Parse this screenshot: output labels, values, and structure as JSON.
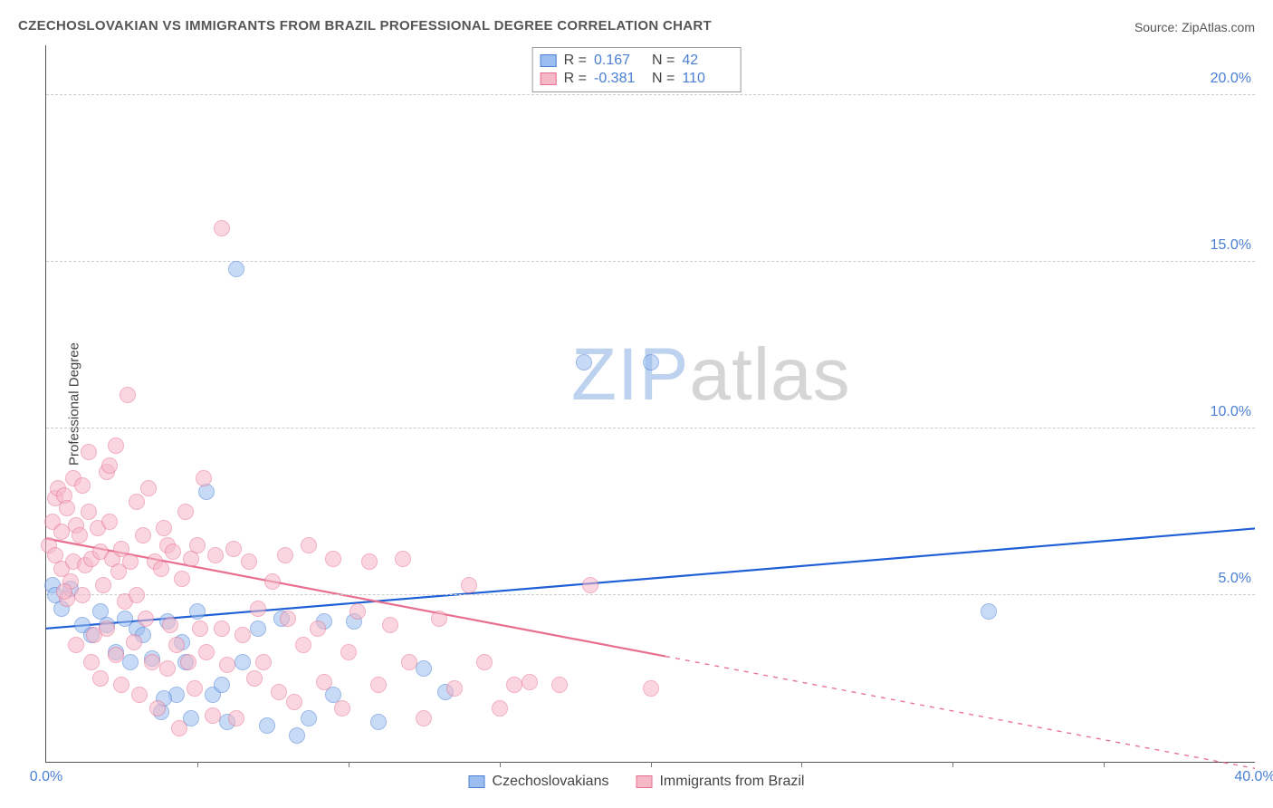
{
  "title": "CZECHOSLOVAKIAN VS IMMIGRANTS FROM BRAZIL PROFESSIONAL DEGREE CORRELATION CHART",
  "source_label": "Source: ",
  "source_name": "ZipAtlas.com",
  "ylabel": "Professional Degree",
  "watermark_a": "ZIP",
  "watermark_b": "atlas",
  "chart": {
    "type": "scatter",
    "xlim": [
      0,
      40
    ],
    "ylim": [
      0,
      21.5
    ],
    "xticks": [
      0,
      40
    ],
    "xtick_marks": [
      5,
      10,
      15,
      20,
      25,
      30,
      35
    ],
    "yticks": [
      5,
      10,
      15,
      20
    ],
    "xtick_fmt": "%",
    "ytick_fmt": "%",
    "background_color": "#ffffff",
    "grid_color": "#cccccc",
    "axis_color": "#555555",
    "tick_color": "#4a7fd4",
    "label_fontsize": 15,
    "tick_fontsize": 16,
    "marker_radius": 9,
    "marker_opacity": 0.55,
    "series": [
      {
        "name": "Czechoslovakians",
        "color_fill": "#9bbdf0",
        "color_stroke": "#4a7fd4",
        "R": "0.167",
        "N": "42",
        "trend": {
          "x1": 0,
          "y1": 4.0,
          "x2": 40,
          "y2": 7.0,
          "color": "#1f5fd6",
          "width": 2.2
        },
        "points": [
          [
            0.2,
            5.3
          ],
          [
            0.3,
            5.0
          ],
          [
            0.5,
            4.6
          ],
          [
            0.8,
            5.2
          ],
          [
            1.2,
            4.1
          ],
          [
            1.5,
            3.8
          ],
          [
            1.8,
            4.5
          ],
          [
            2.0,
            4.1
          ],
          [
            2.3,
            3.3
          ],
          [
            2.6,
            4.3
          ],
          [
            2.8,
            3.0
          ],
          [
            3.0,
            4.0
          ],
          [
            3.2,
            3.8
          ],
          [
            3.5,
            3.1
          ],
          [
            3.8,
            1.5
          ],
          [
            4.0,
            4.2
          ],
          [
            4.3,
            2.0
          ],
          [
            4.5,
            3.6
          ],
          [
            4.8,
            1.3
          ],
          [
            5.0,
            4.5
          ],
          [
            5.3,
            8.1
          ],
          [
            5.5,
            2.0
          ],
          [
            6.0,
            1.2
          ],
          [
            6.3,
            14.8
          ],
          [
            6.5,
            3.0
          ],
          [
            7.0,
            4.0
          ],
          [
            7.3,
            1.1
          ],
          [
            7.8,
            4.3
          ],
          [
            8.3,
            0.8
          ],
          [
            8.7,
            1.3
          ],
          [
            9.2,
            4.2
          ],
          [
            9.5,
            2.0
          ],
          [
            10.2,
            4.2
          ],
          [
            11.0,
            1.2
          ],
          [
            12.5,
            2.8
          ],
          [
            13.2,
            2.1
          ],
          [
            17.8,
            12.0
          ],
          [
            20.0,
            12.0
          ],
          [
            31.2,
            4.5
          ],
          [
            3.9,
            1.9
          ],
          [
            4.6,
            3.0
          ],
          [
            5.8,
            2.3
          ]
        ]
      },
      {
        "name": "Immigrants from Brazil",
        "color_fill": "#f6b8c7",
        "color_stroke": "#e86f8f",
        "R": "-0.381",
        "N": "110",
        "trend": {
          "x1": 0,
          "y1": 6.7,
          "x2": 40,
          "y2": -0.2,
          "color": "#e86f8f",
          "width": 2.2,
          "dash_after_x": 20.5
        },
        "points": [
          [
            0.1,
            6.5
          ],
          [
            0.2,
            7.2
          ],
          [
            0.3,
            7.9
          ],
          [
            0.3,
            6.2
          ],
          [
            0.4,
            8.2
          ],
          [
            0.5,
            5.8
          ],
          [
            0.5,
            6.9
          ],
          [
            0.6,
            8.0
          ],
          [
            0.7,
            7.6
          ],
          [
            0.7,
            4.9
          ],
          [
            0.8,
            5.4
          ],
          [
            0.9,
            8.5
          ],
          [
            0.9,
            6.0
          ],
          [
            1.0,
            7.1
          ],
          [
            1.0,
            3.5
          ],
          [
            1.1,
            6.8
          ],
          [
            1.2,
            5.0
          ],
          [
            1.2,
            8.3
          ],
          [
            1.3,
            5.9
          ],
          [
            1.4,
            7.5
          ],
          [
            1.5,
            6.1
          ],
          [
            1.5,
            3.0
          ],
          [
            1.6,
            3.8
          ],
          [
            1.7,
            7.0
          ],
          [
            1.8,
            6.3
          ],
          [
            1.8,
            2.5
          ],
          [
            1.9,
            5.3
          ],
          [
            2.0,
            8.7
          ],
          [
            2.0,
            4.0
          ],
          [
            2.1,
            7.2
          ],
          [
            2.2,
            6.1
          ],
          [
            2.3,
            9.5
          ],
          [
            2.3,
            3.2
          ],
          [
            2.4,
            5.7
          ],
          [
            2.5,
            6.4
          ],
          [
            2.5,
            2.3
          ],
          [
            2.6,
            4.8
          ],
          [
            2.7,
            11.0
          ],
          [
            2.8,
            6.0
          ],
          [
            2.9,
            3.6
          ],
          [
            3.0,
            7.8
          ],
          [
            3.0,
            5.0
          ],
          [
            3.1,
            2.0
          ],
          [
            3.2,
            6.8
          ],
          [
            3.3,
            4.3
          ],
          [
            3.4,
            8.2
          ],
          [
            3.5,
            3.0
          ],
          [
            3.6,
            6.0
          ],
          [
            3.7,
            1.6
          ],
          [
            3.8,
            5.8
          ],
          [
            3.9,
            7.0
          ],
          [
            4.0,
            6.5
          ],
          [
            4.0,
            2.8
          ],
          [
            4.1,
            4.1
          ],
          [
            4.2,
            6.3
          ],
          [
            4.3,
            3.5
          ],
          [
            4.4,
            1.0
          ],
          [
            4.5,
            5.5
          ],
          [
            4.6,
            7.5
          ],
          [
            4.7,
            3.0
          ],
          [
            4.8,
            6.1
          ],
          [
            4.9,
            2.2
          ],
          [
            5.0,
            6.5
          ],
          [
            5.1,
            4.0
          ],
          [
            5.2,
            8.5
          ],
          [
            5.3,
            3.3
          ],
          [
            5.5,
            1.4
          ],
          [
            5.6,
            6.2
          ],
          [
            5.8,
            16.0
          ],
          [
            5.8,
            4.0
          ],
          [
            6.0,
            2.9
          ],
          [
            6.2,
            6.4
          ],
          [
            6.3,
            1.3
          ],
          [
            6.5,
            3.8
          ],
          [
            6.7,
            6.0
          ],
          [
            6.9,
            2.5
          ],
          [
            7.0,
            4.6
          ],
          [
            7.2,
            3.0
          ],
          [
            7.5,
            5.4
          ],
          [
            7.7,
            2.1
          ],
          [
            7.9,
            6.2
          ],
          [
            8.0,
            4.3
          ],
          [
            8.2,
            1.8
          ],
          [
            8.5,
            3.5
          ],
          [
            8.7,
            6.5
          ],
          [
            9.0,
            4.0
          ],
          [
            9.2,
            2.4
          ],
          [
            9.5,
            6.1
          ],
          [
            9.8,
            1.6
          ],
          [
            10.0,
            3.3
          ],
          [
            10.3,
            4.5
          ],
          [
            10.7,
            6.0
          ],
          [
            11.0,
            2.3
          ],
          [
            11.4,
            4.1
          ],
          [
            11.8,
            6.1
          ],
          [
            12.0,
            3.0
          ],
          [
            12.5,
            1.3
          ],
          [
            13.0,
            4.3
          ],
          [
            13.5,
            2.2
          ],
          [
            14.0,
            5.3
          ],
          [
            14.5,
            3.0
          ],
          [
            15.0,
            1.6
          ],
          [
            15.5,
            2.3
          ],
          [
            16.0,
            2.4
          ],
          [
            17.0,
            2.3
          ],
          [
            18.0,
            5.3
          ],
          [
            20.0,
            2.2
          ],
          [
            1.4,
            9.3
          ],
          [
            2.1,
            8.9
          ],
          [
            0.6,
            5.1
          ]
        ]
      }
    ]
  },
  "stats_labels": {
    "R": "R =",
    "N": "N ="
  },
  "legend_label_a": "Czechoslovakians",
  "legend_label_b": "Immigrants from Brazil"
}
